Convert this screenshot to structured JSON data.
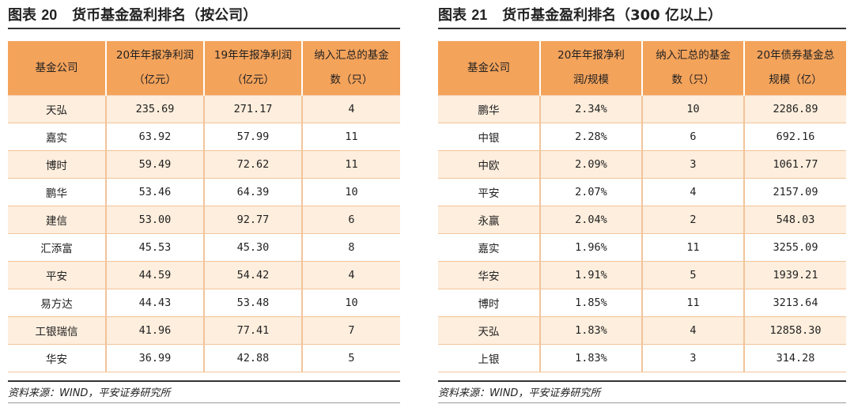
{
  "left": {
    "title_prefix": "图表",
    "title_num": "20",
    "title_text": "货币基金盈利排名（按公司）",
    "headers": [
      "基金公司",
      "20年年报净利润（亿元）",
      "19年年报净利润（亿元）",
      "纳入汇总的基金数（只）"
    ],
    "rows": [
      [
        "天弘",
        "235.69",
        "271.17",
        "4"
      ],
      [
        "嘉实",
        "63.92",
        "57.99",
        "11"
      ],
      [
        "博时",
        "59.49",
        "72.62",
        "11"
      ],
      [
        "鹏华",
        "53.46",
        "64.39",
        "10"
      ],
      [
        "建信",
        "53.00",
        "92.77",
        "6"
      ],
      [
        "汇添富",
        "45.53",
        "45.30",
        "8"
      ],
      [
        "平安",
        "44.59",
        "54.42",
        "4"
      ],
      [
        "易方达",
        "44.43",
        "53.48",
        "10"
      ],
      [
        "工银瑞信",
        "41.96",
        "77.41",
        "7"
      ],
      [
        "华安",
        "36.99",
        "42.88",
        "5"
      ]
    ],
    "source": "资料来源：WIND，平安证券研究所"
  },
  "right": {
    "title_prefix": "图表",
    "title_num": "21",
    "title_text": "货币基金盈利排名（300 亿以上）",
    "headers": [
      "基金公司",
      "20年年报净利润/规模",
      "纳入汇总的基金数（只）",
      "20年债券基金总规模（亿）"
    ],
    "rows": [
      [
        "鹏华",
        "2.34%",
        "10",
        "2286.89"
      ],
      [
        "中银",
        "2.28%",
        "6",
        "692.16"
      ],
      [
        "中欧",
        "2.09%",
        "3",
        "1061.77"
      ],
      [
        "平安",
        "2.07%",
        "4",
        "2157.09"
      ],
      [
        "永赢",
        "2.04%",
        "2",
        "548.03"
      ],
      [
        "嘉实",
        "1.96%",
        "11",
        "3255.09"
      ],
      [
        "华安",
        "1.91%",
        "5",
        "1939.21"
      ],
      [
        "博时",
        "1.85%",
        "11",
        "3213.64"
      ],
      [
        "天弘",
        "1.83%",
        "4",
        "12858.30"
      ],
      [
        "上银",
        "1.83%",
        "3",
        "314.28"
      ]
    ],
    "source": "资料来源：WIND，平安证券研究所"
  }
}
